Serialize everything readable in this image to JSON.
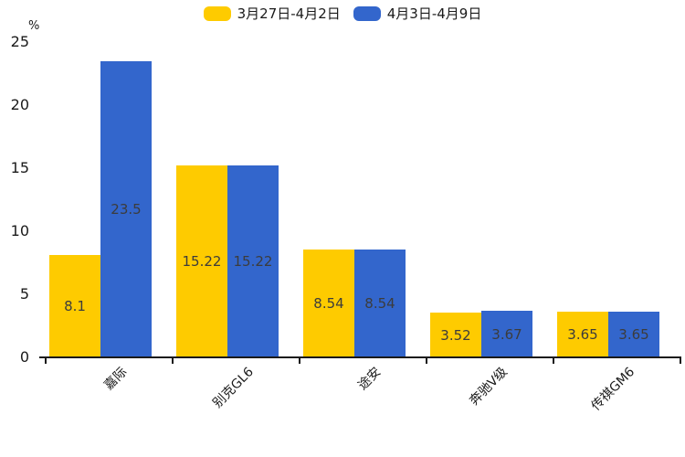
{
  "chart_data": {
    "type": "bar",
    "title": "",
    "categories": [
      "嘉际",
      "别克GL6",
      "途安",
      "奔驰V级",
      "传祺GM6"
    ],
    "series": [
      {
        "name": "3月27日-4月2日",
        "color": "#FECB00",
        "values": [
          8.1,
          15.22,
          8.54,
          3.52,
          3.65
        ]
      },
      {
        "name": "4月3日-4月9日",
        "color": "#3366CC",
        "values": [
          23.5,
          15.22,
          8.54,
          3.67,
          3.65
        ]
      }
    ],
    "ylabel": "%",
    "xlabel": "",
    "ylim": [
      0,
      25
    ],
    "yticks": [
      0,
      5,
      10,
      15,
      20,
      25
    ],
    "grid": false,
    "legend_position": "top",
    "value_labels": "inside-center",
    "xtick_rotation": 45
  },
  "colors": {
    "background": "#FFFFFF",
    "axis": "#1A1A1A",
    "value_label": "#3C3C3C"
  }
}
